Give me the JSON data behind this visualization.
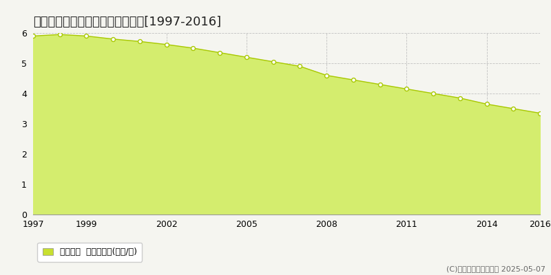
{
  "title": "多気郡多気町平谷　基準地価推移[1997-2016]",
  "years": [
    1997,
    1998,
    1999,
    2000,
    2001,
    2002,
    2003,
    2004,
    2005,
    2006,
    2007,
    2008,
    2009,
    2010,
    2011,
    2012,
    2013,
    2014,
    2015,
    2016
  ],
  "values": [
    5.9,
    5.95,
    5.9,
    5.8,
    5.72,
    5.62,
    5.5,
    5.35,
    5.2,
    5.05,
    4.9,
    4.6,
    4.45,
    4.3,
    4.15,
    4.0,
    3.85,
    3.65,
    3.5,
    3.35
  ],
  "fill_color": "#d4ed6e",
  "line_color": "#a8c800",
  "marker_facecolor": "#ffffff",
  "marker_edgecolor": "#a8c800",
  "background_color": "#f5f5f0",
  "plot_bg_color": "#f5f5f0",
  "grid_color": "#bbbbbb",
  "ylim": [
    0,
    6
  ],
  "yticks": [
    0,
    1,
    2,
    3,
    4,
    5,
    6
  ],
  "xticks": [
    1997,
    1999,
    2002,
    2005,
    2008,
    2011,
    2014,
    2016
  ],
  "legend_label": "基準地価  平均坪単価(万円/坪)",
  "legend_color": "#c8e030",
  "copyright_text": "(C)土地価格ドットコム 2025-05-07",
  "title_fontsize": 13,
  "tick_fontsize": 9,
  "legend_fontsize": 9,
  "copyright_fontsize": 8
}
